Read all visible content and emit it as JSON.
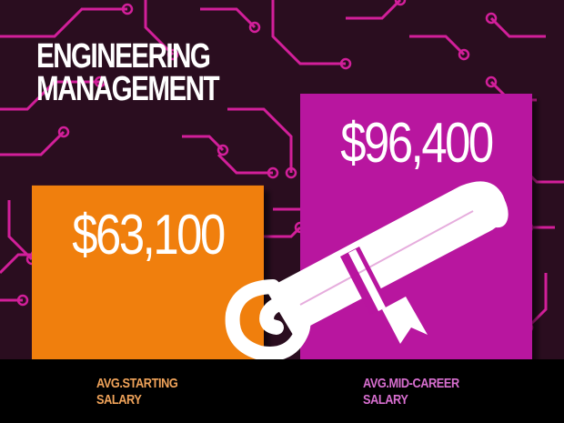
{
  "title": {
    "line1": "ENGINEERING",
    "line2": "MANAGEMENT"
  },
  "colors": {
    "background": "#2a0d1f",
    "circuit": "#d21f9a",
    "starting_bar": "#f07f10",
    "mid_career_bar": "#b8159f",
    "footer": "#000000",
    "diploma": "#ffffff"
  },
  "icon": "diploma-scroll-icon",
  "labels": {
    "starting_line1": "AVG.STARTING",
    "starting_line2": "SALARY",
    "mid_line1": "AVG.MID-CAREER",
    "mid_line2": "SALARY"
  },
  "chart_data": {
    "type": "bar",
    "title": "ENGINEERING MANAGEMENT",
    "categories": [
      "AVG.STARTING SALARY",
      "AVG.MID-CAREER SALARY"
    ],
    "values": [
      63100,
      96400
    ],
    "value_labels": [
      "$63,100",
      "$96,400"
    ],
    "bar_colors": [
      "#f07f10",
      "#b8159f"
    ],
    "xlabel": "",
    "ylabel": "",
    "grid": false,
    "legend": "none"
  }
}
